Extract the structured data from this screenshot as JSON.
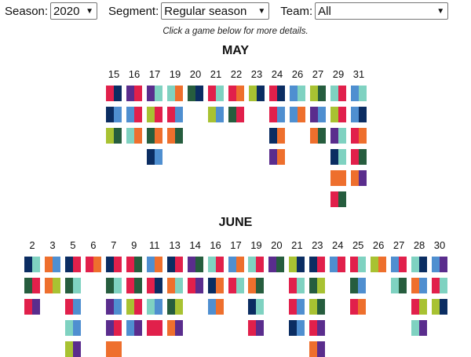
{
  "filters": {
    "season": {
      "label": "Season:",
      "value": "2020"
    },
    "segment": {
      "label": "Segment:",
      "value": "Regular season"
    },
    "team": {
      "label": "Team:",
      "value": "All"
    }
  },
  "hint": "Click a game below for more details.",
  "colors": {
    "navy": "#0b2d62",
    "red": "#e1204b",
    "blue": "#4f8fd0",
    "lime": "#a8c232",
    "darkgreen": "#265d3e",
    "orange": "#ee6f2d",
    "purple": "#5a2d8d",
    "teal": "#7fd2c1",
    "pink": "#e84a67"
  },
  "months": [
    {
      "name": "MAY",
      "days": [
        {
          "day": "15",
          "games": [
            [
              "red",
              "navy"
            ],
            [
              "navy",
              "blue"
            ],
            [
              "lime",
              "darkgreen"
            ]
          ]
        },
        {
          "day": "16",
          "games": [
            [
              "purple",
              "red"
            ],
            [
              "blue",
              "red"
            ],
            [
              "teal",
              "orange"
            ]
          ]
        },
        {
          "day": "17",
          "games": [
            [
              "purple",
              "teal"
            ],
            [
              "lime",
              "red"
            ],
            [
              "darkgreen",
              "orange"
            ],
            [
              "navy",
              "blue"
            ]
          ]
        },
        {
          "day": "19",
          "games": [
            [
              "teal",
              "orange"
            ],
            [
              "red",
              "blue"
            ],
            [
              "orange",
              "darkgreen"
            ]
          ]
        },
        {
          "day": "20",
          "games": [
            [
              "darkgreen",
              "navy"
            ]
          ]
        },
        {
          "day": "21",
          "games": [
            [
              "red",
              "teal"
            ],
            [
              "lime",
              "blue"
            ]
          ]
        },
        {
          "day": "22",
          "games": [
            [
              "red",
              "orange"
            ],
            [
              "darkgreen",
              "red"
            ]
          ]
        },
        {
          "day": "23",
          "games": [
            [
              "lime",
              "navy"
            ]
          ]
        },
        {
          "day": "24",
          "games": [
            [
              "red",
              "navy"
            ],
            [
              "red",
              "blue"
            ],
            [
              "navy",
              "orange"
            ],
            [
              "purple",
              "orange"
            ]
          ]
        },
        {
          "day": "26",
          "games": [
            [
              "blue",
              "teal"
            ],
            [
              "blue",
              "orange"
            ]
          ]
        },
        {
          "day": "27",
          "games": [
            [
              "lime",
              "darkgreen"
            ],
            [
              "purple",
              "blue"
            ],
            [
              "orange",
              "darkgreen"
            ]
          ]
        },
        {
          "day": "29",
          "games": [
            [
              "teal",
              "red"
            ],
            [
              "lime",
              "red"
            ],
            [
              "purple",
              "teal"
            ],
            [
              "navy",
              "teal"
            ],
            [
              "orange",
              "orange"
            ],
            [
              "red",
              "darkgreen"
            ]
          ]
        },
        {
          "day": "31",
          "games": [
            [
              "blue",
              "teal"
            ],
            [
              "blue",
              "navy"
            ],
            [
              "red",
              "orange"
            ],
            [
              "red",
              "darkgreen"
            ],
            [
              "orange",
              "purple"
            ]
          ]
        }
      ]
    },
    {
      "name": "JUNE",
      "days": [
        {
          "day": "2",
          "games": [
            [
              "navy",
              "teal"
            ],
            [
              "darkgreen",
              "red"
            ],
            [
              "red",
              "purple"
            ]
          ]
        },
        {
          "day": "3",
          "games": [
            [
              "orange",
              "blue"
            ],
            [
              "orange",
              "lime"
            ]
          ]
        },
        {
          "day": "5",
          "games": [
            [
              "navy",
              "red"
            ],
            [
              "darkgreen",
              "teal"
            ],
            [
              "red",
              "blue"
            ],
            [
              "teal",
              "blue"
            ],
            [
              "lime",
              "purple"
            ]
          ]
        },
        {
          "day": "6",
          "games": [
            [
              "red",
              "orange"
            ]
          ]
        },
        {
          "day": "7",
          "games": [
            [
              "navy",
              "red"
            ],
            [
              "darkgreen",
              "teal"
            ],
            [
              "purple",
              "blue"
            ],
            [
              "purple",
              "red"
            ],
            [
              "orange",
              "orange"
            ]
          ]
        },
        {
          "day": "9",
          "games": [
            [
              "red",
              "darkgreen"
            ],
            [
              "red",
              "darkgreen"
            ],
            [
              "lime",
              "red"
            ],
            [
              "blue",
              "purple"
            ]
          ]
        },
        {
          "day": "11",
          "games": [
            [
              "blue",
              "orange"
            ],
            [
              "red",
              "navy"
            ],
            [
              "teal",
              "blue"
            ],
            [
              "red",
              "red"
            ]
          ]
        },
        {
          "day": "13",
          "games": [
            [
              "navy",
              "red"
            ],
            [
              "orange",
              "teal"
            ],
            [
              "darkgreen",
              "lime"
            ],
            [
              "orange",
              "purple"
            ]
          ]
        },
        {
          "day": "14",
          "games": [
            [
              "purple",
              "darkgreen"
            ],
            [
              "red",
              "purple"
            ]
          ]
        },
        {
          "day": "16",
          "games": [
            [
              "teal",
              "red"
            ],
            [
              "navy",
              "orange"
            ],
            [
              "blue",
              "orange"
            ]
          ]
        },
        {
          "day": "17",
          "games": [
            [
              "blue",
              "orange"
            ],
            [
              "red",
              "teal"
            ]
          ]
        },
        {
          "day": "19",
          "games": [
            [
              "teal",
              "red"
            ],
            [
              "orange",
              "darkgreen"
            ],
            [
              "navy",
              "teal"
            ],
            [
              "red",
              "purple"
            ]
          ]
        },
        {
          "day": "20",
          "games": [
            [
              "purple",
              "darkgreen"
            ]
          ]
        },
        {
          "day": "21",
          "games": [
            [
              "lime",
              "navy"
            ],
            [
              "red",
              "teal"
            ],
            [
              "red",
              "blue"
            ],
            [
              "navy",
              "blue"
            ]
          ]
        },
        {
          "day": "23",
          "games": [
            [
              "navy",
              "red"
            ],
            [
              "darkgreen",
              "lime"
            ],
            [
              "lime",
              "darkgreen"
            ],
            [
              "red",
              "purple"
            ],
            [
              "orange",
              "purple"
            ]
          ]
        },
        {
          "day": "24",
          "games": [
            [
              "blue",
              "red"
            ]
          ]
        },
        {
          "day": "25",
          "games": [
            [
              "red",
              "teal"
            ],
            [
              "darkgreen",
              "blue"
            ],
            [
              "red",
              "orange"
            ]
          ]
        },
        {
          "day": "26",
          "games": [
            [
              "lime",
              "orange"
            ]
          ]
        },
        {
          "day": "27",
          "games": [
            [
              "blue",
              "red"
            ],
            [
              "teal",
              "darkgreen"
            ]
          ]
        },
        {
          "day": "28",
          "games": [
            [
              "teal",
              "navy"
            ],
            [
              "orange",
              "blue"
            ],
            [
              "red",
              "lime"
            ],
            [
              "teal",
              "purple"
            ]
          ]
        },
        {
          "day": "30",
          "games": [
            [
              "blue",
              "purple"
            ],
            [
              "red",
              "teal"
            ],
            [
              "lime",
              "navy"
            ]
          ]
        }
      ]
    }
  ]
}
